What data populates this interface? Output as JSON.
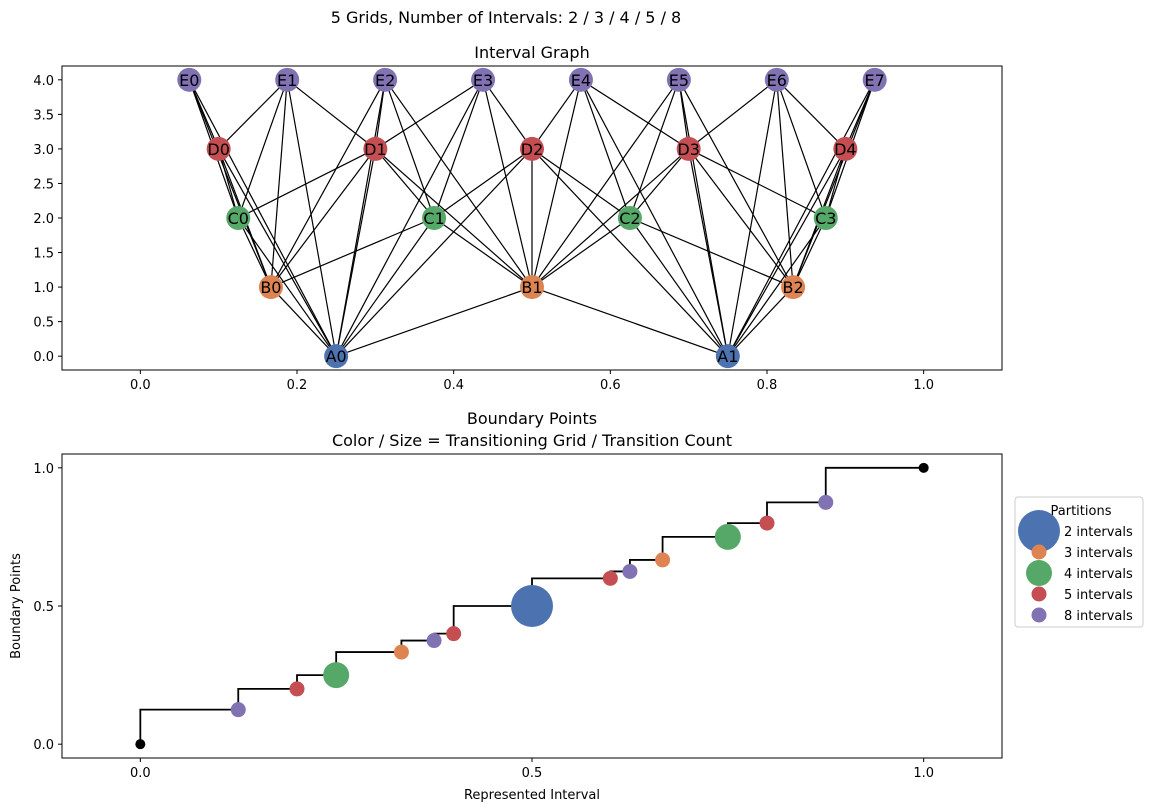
{
  "suptitle": "5 Grids, Number of Intervals: 2 / 3 / 4 / 5 / 8",
  "colors": {
    "A": "#4c72b0",
    "B": "#dd8452",
    "C": "#55a868",
    "D": "#c44e52",
    "E": "#8172b3",
    "endpoint": "#000000"
  },
  "chart_data": [
    {
      "type": "scatter",
      "title": "Interval Graph",
      "xlabel": "",
      "ylabel": "",
      "xlim": [
        -0.1,
        1.1
      ],
      "ylim": [
        -0.2,
        4.2
      ],
      "xticks": [
        "0.0",
        "0.2",
        "0.4",
        "0.6",
        "0.8",
        "1.0"
      ],
      "yticks": [
        "0.0",
        "0.5",
        "1.0",
        "1.5",
        "2.0",
        "2.5",
        "3.0",
        "3.5",
        "4.0"
      ],
      "grid": false,
      "nodes": [
        {
          "id": "A0",
          "x": 0.25,
          "y": 0,
          "group": "A"
        },
        {
          "id": "A1",
          "x": 0.75,
          "y": 0,
          "group": "A"
        },
        {
          "id": "B0",
          "x": 0.1667,
          "y": 1,
          "group": "B"
        },
        {
          "id": "B1",
          "x": 0.5,
          "y": 1,
          "group": "B"
        },
        {
          "id": "B2",
          "x": 0.8333,
          "y": 1,
          "group": "B"
        },
        {
          "id": "C0",
          "x": 0.125,
          "y": 2,
          "group": "C"
        },
        {
          "id": "C1",
          "x": 0.375,
          "y": 2,
          "group": "C"
        },
        {
          "id": "C2",
          "x": 0.625,
          "y": 2,
          "group": "C"
        },
        {
          "id": "C3",
          "x": 0.875,
          "y": 2,
          "group": "C"
        },
        {
          "id": "D0",
          "x": 0.1,
          "y": 3,
          "group": "D"
        },
        {
          "id": "D1",
          "x": 0.3,
          "y": 3,
          "group": "D"
        },
        {
          "id": "D2",
          "x": 0.5,
          "y": 3,
          "group": "D"
        },
        {
          "id": "D3",
          "x": 0.7,
          "y": 3,
          "group": "D"
        },
        {
          "id": "D4",
          "x": 0.9,
          "y": 3,
          "group": "D"
        },
        {
          "id": "E0",
          "x": 0.0625,
          "y": 4,
          "group": "E"
        },
        {
          "id": "E1",
          "x": 0.1875,
          "y": 4,
          "group": "E"
        },
        {
          "id": "E2",
          "x": 0.3125,
          "y": 4,
          "group": "E"
        },
        {
          "id": "E3",
          "x": 0.4375,
          "y": 4,
          "group": "E"
        },
        {
          "id": "E4",
          "x": 0.5625,
          "y": 4,
          "group": "E"
        },
        {
          "id": "E5",
          "x": 0.6875,
          "y": 4,
          "group": "E"
        },
        {
          "id": "E6",
          "x": 0.8125,
          "y": 4,
          "group": "E"
        },
        {
          "id": "E7",
          "x": 0.9375,
          "y": 4,
          "group": "E"
        }
      ],
      "edges": [
        [
          "A0",
          "B0"
        ],
        [
          "A0",
          "B1"
        ],
        [
          "A0",
          "C0"
        ],
        [
          "A0",
          "C1"
        ],
        [
          "A0",
          "D0"
        ],
        [
          "A0",
          "D1"
        ],
        [
          "A0",
          "D2"
        ],
        [
          "A0",
          "E0"
        ],
        [
          "A0",
          "E1"
        ],
        [
          "A0",
          "E2"
        ],
        [
          "A0",
          "E3"
        ],
        [
          "A1",
          "B1"
        ],
        [
          "A1",
          "B2"
        ],
        [
          "A1",
          "C2"
        ],
        [
          "A1",
          "C3"
        ],
        [
          "A1",
          "D2"
        ],
        [
          "A1",
          "D3"
        ],
        [
          "A1",
          "D4"
        ],
        [
          "A1",
          "E4"
        ],
        [
          "A1",
          "E5"
        ],
        [
          "A1",
          "E6"
        ],
        [
          "A1",
          "E7"
        ],
        [
          "B0",
          "C0"
        ],
        [
          "B0",
          "C1"
        ],
        [
          "B0",
          "D0"
        ],
        [
          "B0",
          "D1"
        ],
        [
          "B0",
          "E0"
        ],
        [
          "B0",
          "E1"
        ],
        [
          "B0",
          "E2"
        ],
        [
          "B1",
          "C1"
        ],
        [
          "B1",
          "C2"
        ],
        [
          "B1",
          "D1"
        ],
        [
          "B1",
          "D2"
        ],
        [
          "B1",
          "D3"
        ],
        [
          "B1",
          "E2"
        ],
        [
          "B1",
          "E3"
        ],
        [
          "B1",
          "E4"
        ],
        [
          "B1",
          "E5"
        ],
        [
          "B2",
          "C2"
        ],
        [
          "B2",
          "C3"
        ],
        [
          "B2",
          "D3"
        ],
        [
          "B2",
          "D4"
        ],
        [
          "B2",
          "E5"
        ],
        [
          "B2",
          "E6"
        ],
        [
          "B2",
          "E7"
        ],
        [
          "C0",
          "D0"
        ],
        [
          "C0",
          "D1"
        ],
        [
          "C0",
          "E0"
        ],
        [
          "C0",
          "E1"
        ],
        [
          "C1",
          "D1"
        ],
        [
          "C1",
          "D2"
        ],
        [
          "C1",
          "E2"
        ],
        [
          "C1",
          "E3"
        ],
        [
          "C2",
          "D2"
        ],
        [
          "C2",
          "D3"
        ],
        [
          "C2",
          "E4"
        ],
        [
          "C2",
          "E5"
        ],
        [
          "C3",
          "D3"
        ],
        [
          "C3",
          "D4"
        ],
        [
          "C3",
          "E6"
        ],
        [
          "C3",
          "E7"
        ],
        [
          "D0",
          "E0"
        ],
        [
          "D0",
          "E1"
        ],
        [
          "D1",
          "E1"
        ],
        [
          "D1",
          "E2"
        ],
        [
          "D1",
          "E3"
        ],
        [
          "D2",
          "E3"
        ],
        [
          "D2",
          "E4"
        ],
        [
          "D3",
          "E4"
        ],
        [
          "D3",
          "E5"
        ],
        [
          "D3",
          "E6"
        ],
        [
          "D4",
          "E6"
        ],
        [
          "D4",
          "E7"
        ]
      ]
    },
    {
      "type": "scatter",
      "title": "Boundary Points",
      "subtitle": "Color / Size = Transitioning Grid / Transition Count",
      "xlabel": "Represented Interval",
      "ylabel": "Boundary Points",
      "xlim": [
        -0.1,
        1.1
      ],
      "ylim": [
        -0.05,
        1.05
      ],
      "xticks": [
        "0.0",
        "0.5",
        "1.0"
      ],
      "yticks": [
        "0.0",
        "0.5",
        "1.0"
      ],
      "grid": false,
      "step_x": [
        0,
        0.125,
        0.2,
        0.25,
        0.3333,
        0.375,
        0.4,
        0.5,
        0.6,
        0.625,
        0.6667,
        0.75,
        0.8,
        0.875,
        1.0
      ],
      "step_y": [
        0,
        0.125,
        0.2,
        0.25,
        0.3333,
        0.375,
        0.4,
        0.5,
        0.6,
        0.625,
        0.6667,
        0.75,
        0.8,
        0.875,
        1.0
      ],
      "points": [
        {
          "x": 0.0,
          "y": 0.0,
          "group": "endpoint",
          "size": 1
        },
        {
          "x": 0.125,
          "y": 0.125,
          "group": "E",
          "size": 1
        },
        {
          "x": 0.2,
          "y": 0.2,
          "group": "D",
          "size": 1
        },
        {
          "x": 0.25,
          "y": 0.25,
          "group": "C",
          "size": 2
        },
        {
          "x": 0.3333,
          "y": 0.3333,
          "group": "B",
          "size": 1
        },
        {
          "x": 0.375,
          "y": 0.375,
          "group": "E",
          "size": 1
        },
        {
          "x": 0.4,
          "y": 0.4,
          "group": "D",
          "size": 1
        },
        {
          "x": 0.5,
          "y": 0.5,
          "group": "A",
          "size": 4
        },
        {
          "x": 0.6,
          "y": 0.6,
          "group": "D",
          "size": 1
        },
        {
          "x": 0.625,
          "y": 0.625,
          "group": "E",
          "size": 1
        },
        {
          "x": 0.6667,
          "y": 0.6667,
          "group": "B",
          "size": 1
        },
        {
          "x": 0.75,
          "y": 0.75,
          "group": "C",
          "size": 2
        },
        {
          "x": 0.8,
          "y": 0.8,
          "group": "D",
          "size": 1
        },
        {
          "x": 0.875,
          "y": 0.875,
          "group": "E",
          "size": 1
        },
        {
          "x": 1.0,
          "y": 1.0,
          "group": "endpoint",
          "size": 1
        }
      ],
      "legend": {
        "title": "Partitions",
        "placement": "outside-right",
        "entries": [
          {
            "label": "2 intervals",
            "group": "A",
            "size": 4
          },
          {
            "label": "3 intervals",
            "group": "B",
            "size": 1
          },
          {
            "label": "4 intervals",
            "group": "C",
            "size": 2
          },
          {
            "label": "5 intervals",
            "group": "D",
            "size": 1
          },
          {
            "label": "8 intervals",
            "group": "E",
            "size": 1
          }
        ]
      }
    }
  ]
}
